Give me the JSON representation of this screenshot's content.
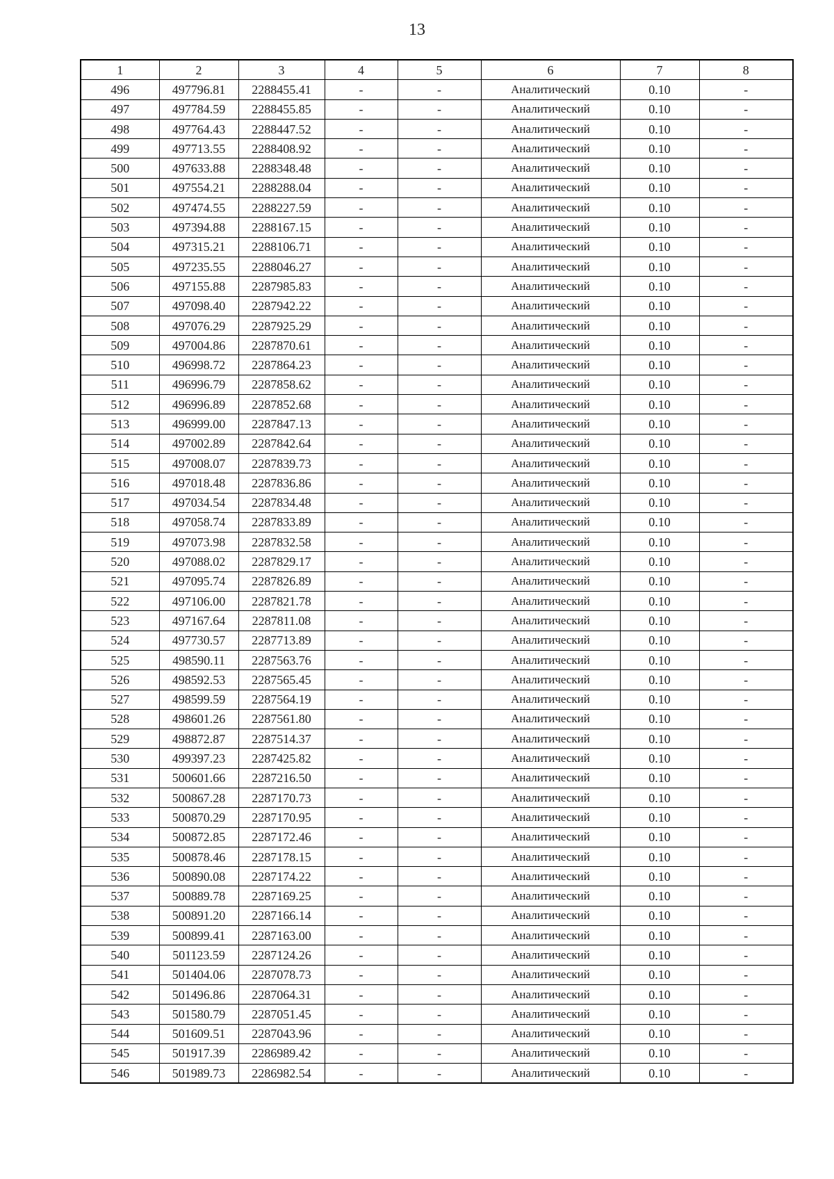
{
  "page_number": "13",
  "table": {
    "headers": [
      "1",
      "2",
      "3",
      "4",
      "5",
      "6",
      "7",
      "8"
    ],
    "rows": [
      [
        "496",
        "497796.81",
        "2288455.41",
        "-",
        "-",
        "Аналитический",
        "0.10",
        "-"
      ],
      [
        "497",
        "497784.59",
        "2288455.85",
        "-",
        "-",
        "Аналитический",
        "0.10",
        "-"
      ],
      [
        "498",
        "497764.43",
        "2288447.52",
        "-",
        "-",
        "Аналитический",
        "0.10",
        "-"
      ],
      [
        "499",
        "497713.55",
        "2288408.92",
        "-",
        "-",
        "Аналитический",
        "0.10",
        "-"
      ],
      [
        "500",
        "497633.88",
        "2288348.48",
        "-",
        "-",
        "Аналитический",
        "0.10",
        "-"
      ],
      [
        "501",
        "497554.21",
        "2288288.04",
        "-",
        "-",
        "Аналитический",
        "0.10",
        "-"
      ],
      [
        "502",
        "497474.55",
        "2288227.59",
        "-",
        "-",
        "Аналитический",
        "0.10",
        "-"
      ],
      [
        "503",
        "497394.88",
        "2288167.15",
        "-",
        "-",
        "Аналитический",
        "0.10",
        "-"
      ],
      [
        "504",
        "497315.21",
        "2288106.71",
        "-",
        "-",
        "Аналитический",
        "0.10",
        "-"
      ],
      [
        "505",
        "497235.55",
        "2288046.27",
        "-",
        "-",
        "Аналитический",
        "0.10",
        "-"
      ],
      [
        "506",
        "497155.88",
        "2287985.83",
        "-",
        "-",
        "Аналитический",
        "0.10",
        "-"
      ],
      [
        "507",
        "497098.40",
        "2287942.22",
        "-",
        "-",
        "Аналитический",
        "0.10",
        "-"
      ],
      [
        "508",
        "497076.29",
        "2287925.29",
        "-",
        "-",
        "Аналитический",
        "0.10",
        "-"
      ],
      [
        "509",
        "497004.86",
        "2287870.61",
        "-",
        "-",
        "Аналитический",
        "0.10",
        "-"
      ],
      [
        "510",
        "496998.72",
        "2287864.23",
        "-",
        "-",
        "Аналитический",
        "0.10",
        "-"
      ],
      [
        "511",
        "496996.79",
        "2287858.62",
        "-",
        "-",
        "Аналитический",
        "0.10",
        "-"
      ],
      [
        "512",
        "496996.89",
        "2287852.68",
        "-",
        "-",
        "Аналитический",
        "0.10",
        "-"
      ],
      [
        "513",
        "496999.00",
        "2287847.13",
        "-",
        "-",
        "Аналитический",
        "0.10",
        "-"
      ],
      [
        "514",
        "497002.89",
        "2287842.64",
        "-",
        "-",
        "Аналитический",
        "0.10",
        "-"
      ],
      [
        "515",
        "497008.07",
        "2287839.73",
        "-",
        "-",
        "Аналитический",
        "0.10",
        "-"
      ],
      [
        "516",
        "497018.48",
        "2287836.86",
        "-",
        "-",
        "Аналитический",
        "0.10",
        "-"
      ],
      [
        "517",
        "497034.54",
        "2287834.48",
        "-",
        "-",
        "Аналитический",
        "0.10",
        "-"
      ],
      [
        "518",
        "497058.74",
        "2287833.89",
        "-",
        "-",
        "Аналитический",
        "0.10",
        "-"
      ],
      [
        "519",
        "497073.98",
        "2287832.58",
        "-",
        "-",
        "Аналитический",
        "0.10",
        "-"
      ],
      [
        "520",
        "497088.02",
        "2287829.17",
        "-",
        "-",
        "Аналитический",
        "0.10",
        "-"
      ],
      [
        "521",
        "497095.74",
        "2287826.89",
        "-",
        "-",
        "Аналитический",
        "0.10",
        "-"
      ],
      [
        "522",
        "497106.00",
        "2287821.78",
        "-",
        "-",
        "Аналитический",
        "0.10",
        "-"
      ],
      [
        "523",
        "497167.64",
        "2287811.08",
        "-",
        "-",
        "Аналитический",
        "0.10",
        "-"
      ],
      [
        "524",
        "497730.57",
        "2287713.89",
        "-",
        "-",
        "Аналитический",
        "0.10",
        "-"
      ],
      [
        "525",
        "498590.11",
        "2287563.76",
        "-",
        "-",
        "Аналитический",
        "0.10",
        "-"
      ],
      [
        "526",
        "498592.53",
        "2287565.45",
        "-",
        "-",
        "Аналитический",
        "0.10",
        "-"
      ],
      [
        "527",
        "498599.59",
        "2287564.19",
        "-",
        "-",
        "Аналитический",
        "0.10",
        "-"
      ],
      [
        "528",
        "498601.26",
        "2287561.80",
        "-",
        "-",
        "Аналитический",
        "0.10",
        "-"
      ],
      [
        "529",
        "498872.87",
        "2287514.37",
        "-",
        "-",
        "Аналитический",
        "0.10",
        "-"
      ],
      [
        "530",
        "499397.23",
        "2287425.82",
        "-",
        "-",
        "Аналитический",
        "0.10",
        "-"
      ],
      [
        "531",
        "500601.66",
        "2287216.50",
        "-",
        "-",
        "Аналитический",
        "0.10",
        "-"
      ],
      [
        "532",
        "500867.28",
        "2287170.73",
        "-",
        "-",
        "Аналитический",
        "0.10",
        "-"
      ],
      [
        "533",
        "500870.29",
        "2287170.95",
        "-",
        "-",
        "Аналитический",
        "0.10",
        "-"
      ],
      [
        "534",
        "500872.85",
        "2287172.46",
        "-",
        "-",
        "Аналитический",
        "0.10",
        "-"
      ],
      [
        "535",
        "500878.46",
        "2287178.15",
        "-",
        "-",
        "Аналитический",
        "0.10",
        "-"
      ],
      [
        "536",
        "500890.08",
        "2287174.22",
        "-",
        "-",
        "Аналитический",
        "0.10",
        "-"
      ],
      [
        "537",
        "500889.78",
        "2287169.25",
        "-",
        "-",
        "Аналитический",
        "0.10",
        "-"
      ],
      [
        "538",
        "500891.20",
        "2287166.14",
        "-",
        "-",
        "Аналитический",
        "0.10",
        "-"
      ],
      [
        "539",
        "500899.41",
        "2287163.00",
        "-",
        "-",
        "Аналитический",
        "0.10",
        "-"
      ],
      [
        "540",
        "501123.59",
        "2287124.26",
        "-",
        "-",
        "Аналитический",
        "0.10",
        "-"
      ],
      [
        "541",
        "501404.06",
        "2287078.73",
        "-",
        "-",
        "Аналитический",
        "0.10",
        "-"
      ],
      [
        "542",
        "501496.86",
        "2287064.31",
        "-",
        "-",
        "Аналитический",
        "0.10",
        "-"
      ],
      [
        "543",
        "501580.79",
        "2287051.45",
        "-",
        "-",
        "Аналитический",
        "0.10",
        "-"
      ],
      [
        "544",
        "501609.51",
        "2287043.96",
        "-",
        "-",
        "Аналитический",
        "0.10",
        "-"
      ],
      [
        "545",
        "501917.39",
        "2286989.42",
        "-",
        "-",
        "Аналитический",
        "0.10",
        "-"
      ],
      [
        "546",
        "501989.73",
        "2286982.54",
        "-",
        "-",
        "Аналитический",
        "0.10",
        "-"
      ]
    ]
  }
}
